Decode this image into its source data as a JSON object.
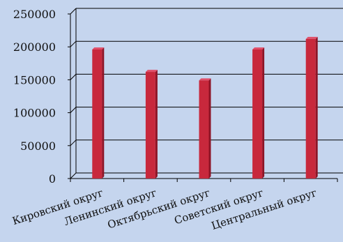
{
  "chart_data": {
    "type": "bar",
    "categories": [
      "Кировский округ",
      "Ленинский округ",
      "Октябрьский округ",
      "Советский округ",
      "Центральный округ"
    ],
    "values": [
      196000,
      162000,
      149000,
      196000,
      212000
    ],
    "ylim": [
      0,
      250000
    ],
    "yticks": [
      0,
      50000,
      100000,
      150000,
      200000,
      250000
    ],
    "yticklabels": [
      "0",
      "50000",
      "100000",
      "150000",
      "200000",
      "250000"
    ],
    "grid": true,
    "legend": "none",
    "title": "",
    "xlabel": "",
    "ylabel": ""
  },
  "colors": {
    "background": "#c5d5ee",
    "bar_front": "#c8283c",
    "bar_side": "#8e1426",
    "bar_top": "#e0506a",
    "grid": "#000000"
  }
}
